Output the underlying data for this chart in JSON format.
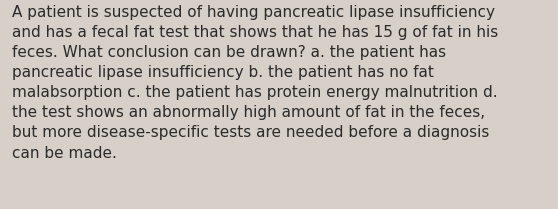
{
  "text": "A patient is suspected of having pancreatic lipase insufficiency\nand has a fecal fat test that shows that he has 15 g of fat in his\nfeces. What conclusion can be drawn? a. the patient has\npancreatic lipase insufficiency b. the patient has no fat\nmalabsorption c. the patient has protein energy malnutrition d.\nthe test shows an abnormally high amount of fat in the feces,\nbut more disease-specific tests are needed before a diagnosis\ncan be made.",
  "background_color": "#d6d0c8",
  "text_color": "#2b2b2b",
  "font_size": 11.0,
  "fig_width": 5.58,
  "fig_height": 2.09,
  "dpi": 100
}
